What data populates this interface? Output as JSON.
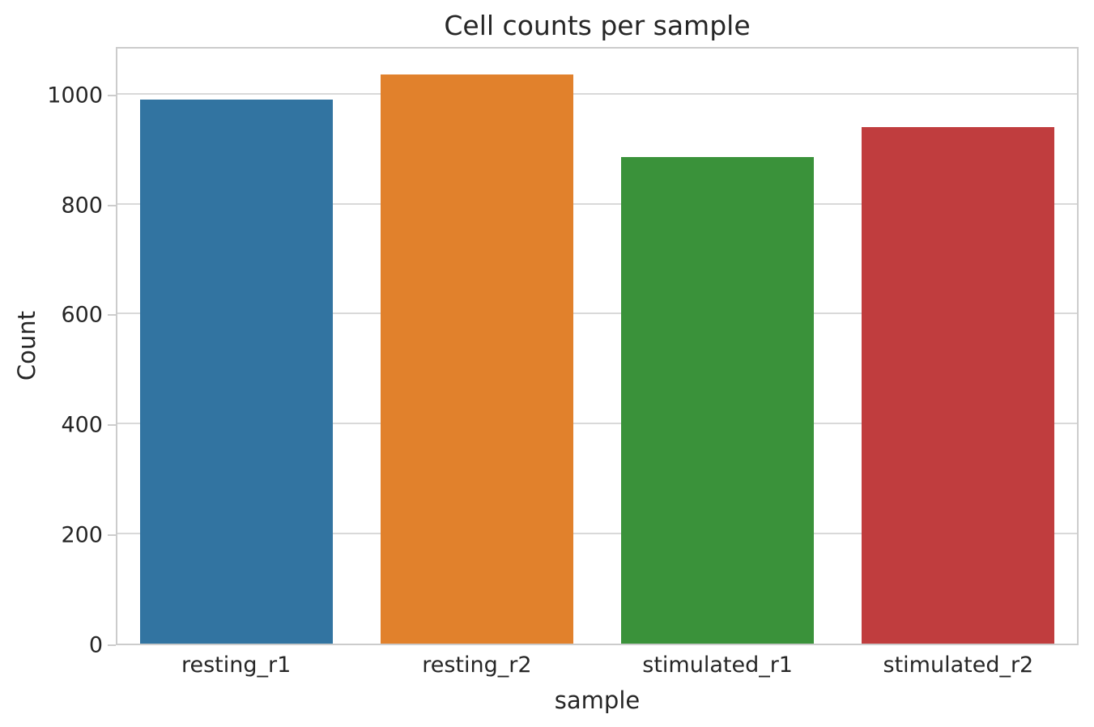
{
  "chart_data": {
    "type": "bar",
    "title": "Cell counts per sample",
    "xlabel": "sample",
    "ylabel": "Count",
    "categories": [
      "resting_r1",
      "resting_r2",
      "stimulated_r1",
      "stimulated_r2"
    ],
    "values": [
      990,
      1035,
      885,
      940
    ],
    "bar_colors": [
      "#3274a1",
      "#e1812c",
      "#3a923a",
      "#c03d3e"
    ],
    "ylim": [
      0,
      1088
    ],
    "yticks": [
      0,
      200,
      400,
      600,
      800,
      1000
    ],
    "grid": "horizontal-only",
    "legend": "none",
    "bar_width_fraction": 0.8,
    "spine_color": "#cccccc",
    "gridline_color": "#d9d9d9",
    "text_color": "#262626"
  }
}
